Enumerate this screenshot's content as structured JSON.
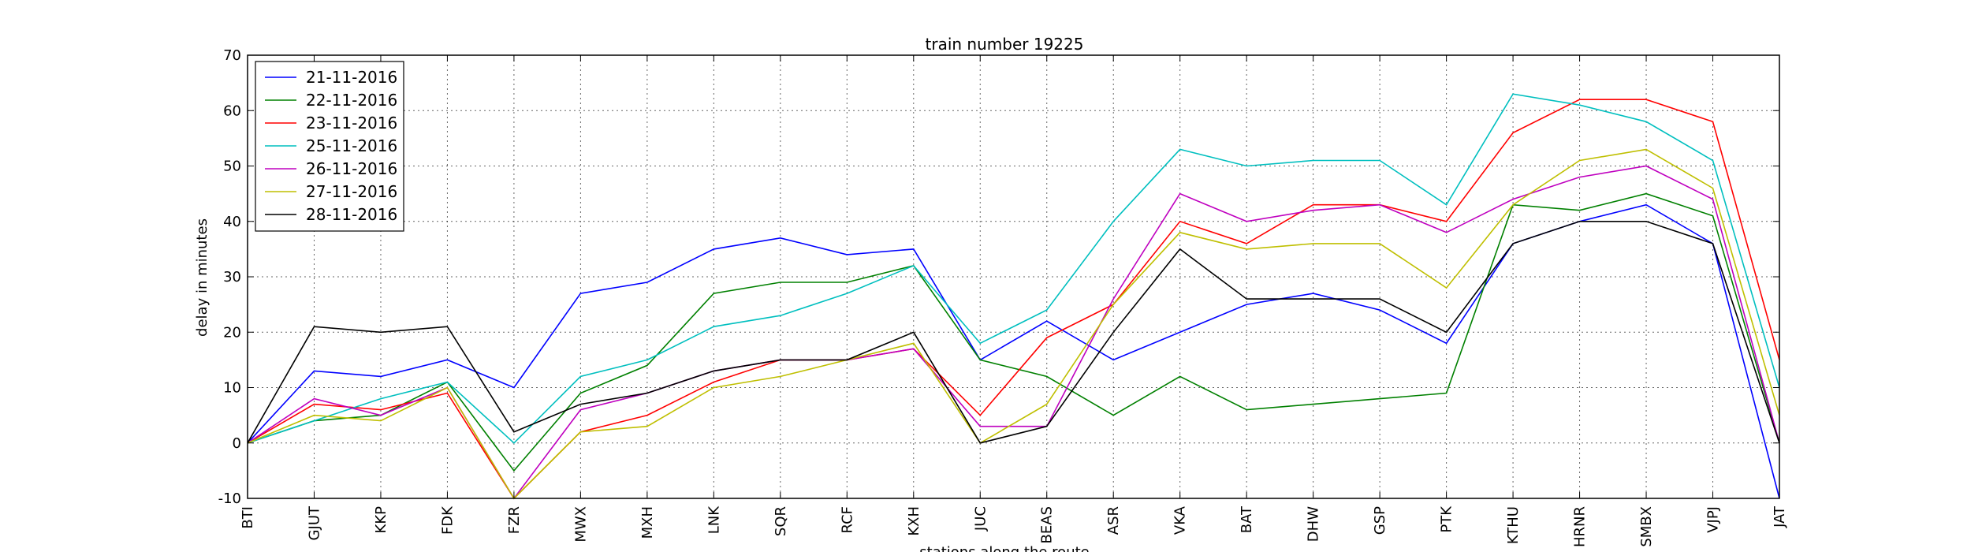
{
  "chart_data": {
    "type": "line",
    "title": "train number 19225",
    "xlabel": "stations along the route",
    "ylabel": "delay in minutes",
    "ylim": [
      -10,
      70
    ],
    "yticks": [
      -10,
      0,
      10,
      20,
      30,
      40,
      50,
      60,
      70
    ],
    "grid": true,
    "legend_position": "top-left",
    "categories": [
      "BTI",
      "GJUT",
      "KKP",
      "FDK",
      "FZR",
      "MWX",
      "MXH",
      "LNK",
      "SQR",
      "RCF",
      "KXH",
      "JUC",
      "BEAS",
      "ASR",
      "VKA",
      "BAT",
      "DHW",
      "GSP",
      "PTK",
      "KTHU",
      "HRNR",
      "SMBX",
      "VJPJ",
      "JAT"
    ],
    "series": [
      {
        "name": "21-11-2016",
        "color": "#0000ff",
        "values": [
          0,
          13,
          12,
          15,
          10,
          27,
          29,
          35,
          37,
          34,
          35,
          15,
          22,
          15,
          20,
          25,
          27,
          24,
          18,
          36,
          40,
          43,
          36,
          -10
        ]
      },
      {
        "name": "22-11-2016",
        "color": "#008000",
        "values": [
          0,
          4,
          5,
          11,
          -5,
          9,
          14,
          27,
          29,
          29,
          32,
          15,
          12,
          5,
          12,
          6,
          7,
          8,
          9,
          43,
          42,
          45,
          41,
          0
        ]
      },
      {
        "name": "23-11-2016",
        "color": "#ff0000",
        "values": [
          0,
          7,
          6,
          9,
          -10,
          2,
          5,
          11,
          15,
          15,
          17,
          5,
          19,
          25,
          40,
          36,
          43,
          43,
          40,
          56,
          62,
          62,
          58,
          15
        ]
      },
      {
        "name": "25-11-2016",
        "color": "#00bfbf",
        "values": [
          0,
          4,
          8,
          11,
          0,
          12,
          15,
          21,
          23,
          27,
          32,
          18,
          24,
          40,
          53,
          50,
          51,
          51,
          43,
          63,
          61,
          58,
          51,
          10
        ]
      },
      {
        "name": "26-11-2016",
        "color": "#bf00bf",
        "values": [
          0,
          8,
          5,
          10,
          -10,
          6,
          9,
          13,
          15,
          15,
          17,
          3,
          3,
          26,
          45,
          40,
          42,
          43,
          38,
          44,
          48,
          50,
          44,
          0
        ]
      },
      {
        "name": "27-11-2016",
        "color": "#bfbf00",
        "values": [
          0,
          5,
          4,
          10,
          -10,
          2,
          3,
          10,
          12,
          15,
          18,
          0,
          7,
          25,
          38,
          35,
          36,
          36,
          28,
          43,
          51,
          53,
          46,
          5
        ]
      },
      {
        "name": "28-11-2016",
        "color": "#000000",
        "values": [
          0,
          21,
          20,
          21,
          2,
          7,
          9,
          13,
          15,
          15,
          20,
          0,
          3,
          20,
          35,
          26,
          26,
          26,
          20,
          36,
          40,
          40,
          36,
          0
        ]
      }
    ]
  }
}
